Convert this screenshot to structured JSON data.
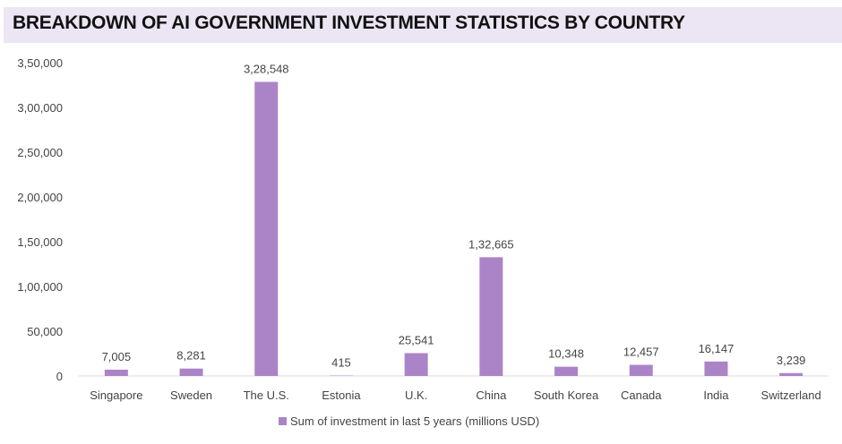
{
  "chart_data": {
    "type": "bar",
    "title": "BREAKDOWN OF AI GOVERNMENT INVESTMENT STATISTICS BY COUNTRY",
    "categories": [
      "Singapore",
      "Sweden",
      "The U.S.",
      "Estonia",
      "U.K.",
      "China",
      "South Korea",
      "Canada",
      "India",
      "Switzerland"
    ],
    "series": [
      {
        "name": "Sum of investment in last 5 years (millions USD)",
        "values": [
          7005,
          8281,
          328548,
          415,
          25541,
          132665,
          10348,
          12457,
          16147,
          3239
        ],
        "data_labels": [
          "7,005",
          "8,281",
          "3,28,548",
          "415",
          "25,541",
          "1,32,665",
          "10,348",
          "12,457",
          "16,147",
          "3,239"
        ]
      }
    ],
    "yticks": [
      0,
      50000,
      100000,
      150000,
      200000,
      250000,
      300000,
      350000
    ],
    "ytick_labels": [
      "0",
      "50,000",
      "1,00,000",
      "1,50,000",
      "2,00,000",
      "2,50,000",
      "3,00,000",
      "3,50,000"
    ],
    "ylim": [
      0,
      350000
    ],
    "xlabel": "",
    "ylabel": "",
    "grid": false,
    "legend": "bottom",
    "bar_color": "#ab84c8",
    "title_band_color": "#ece5f3"
  }
}
